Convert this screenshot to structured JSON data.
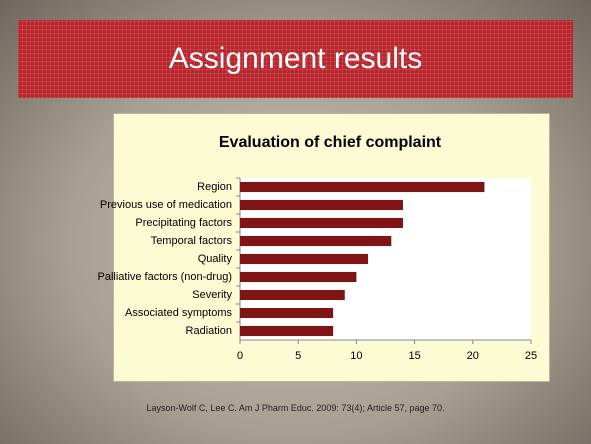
{
  "slide_title": "Assignment results",
  "chart_data": {
    "type": "bar",
    "orientation": "horizontal",
    "title": "Evaluation of chief complaint",
    "categories": [
      "Region",
      "Previous use of medication",
      "Precipitating factors",
      "Temporal factors",
      "Quality",
      "Palliative factors (non-drug)",
      "Severity",
      "Associated symptoms",
      "Radiation"
    ],
    "values": [
      21,
      14,
      14,
      13,
      11,
      10,
      9,
      8,
      8
    ],
    "color": "#7f1315",
    "xlim": [
      0,
      25
    ],
    "xticks": [
      0,
      5,
      10,
      15,
      20,
      25
    ],
    "grid": false
  },
  "footer": "Layson-Wolf C, Lee C. Am J Pharm Educ. 2009: 73(4); Article 57, page 70."
}
